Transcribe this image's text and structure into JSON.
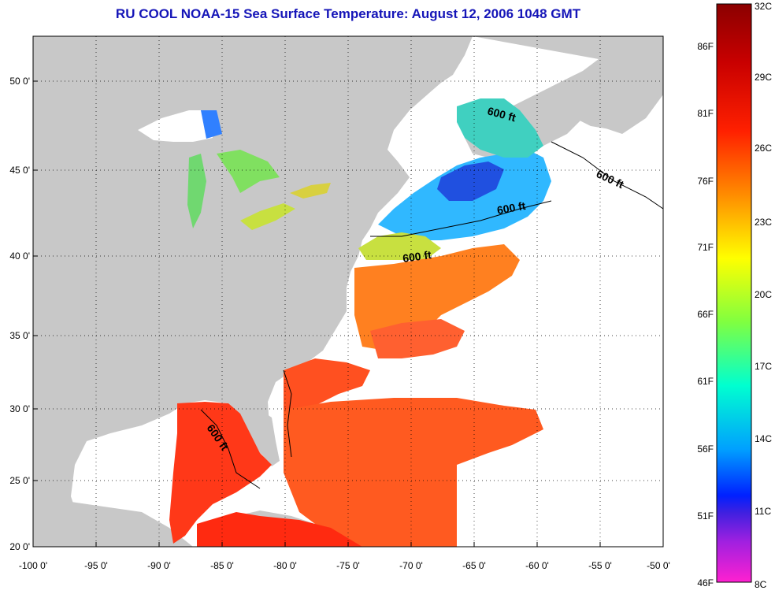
{
  "title": "RU COOL  NOAA-15  Sea Surface Temperature:  August 12, 2006 1048 GMT",
  "map": {
    "lon_range": [
      -100,
      -50
    ],
    "lat_range": [
      20,
      52.5
    ],
    "x_ticks": [
      "-100 0'",
      "-95 0'",
      "-90 0'",
      "-85 0'",
      "-80 0'",
      "-75 0'",
      "-70 0'",
      "-65 0'",
      "-60 0'",
      "-55 0'",
      "-50 0'"
    ],
    "y_ticks": [
      "50 0'",
      "45 0'",
      "40 0'",
      "35 0'",
      "30 0'",
      "25 0'",
      "20 0'"
    ],
    "grid": "dotted",
    "land_color": "#c8c8c8",
    "no_data_color": "#ffffff",
    "contour_label": "600 ft"
  },
  "colorbar": {
    "celsius_labels": [
      "32C",
      "29C",
      "26C",
      "23C",
      "20C",
      "17C",
      "14C",
      "11C",
      "8C"
    ],
    "fahrenheit_labels": [
      "86F",
      "81F",
      "76F",
      "71F",
      "66F",
      "61F",
      "56F",
      "51F",
      "46F"
    ],
    "colors": [
      "#8b0000",
      "#ff0000",
      "#ff8c00",
      "#ffff00",
      "#7fff00",
      "#00ffc8",
      "#00bfff",
      "#0050ff",
      "#0000ff",
      "#ff00ff"
    ]
  }
}
